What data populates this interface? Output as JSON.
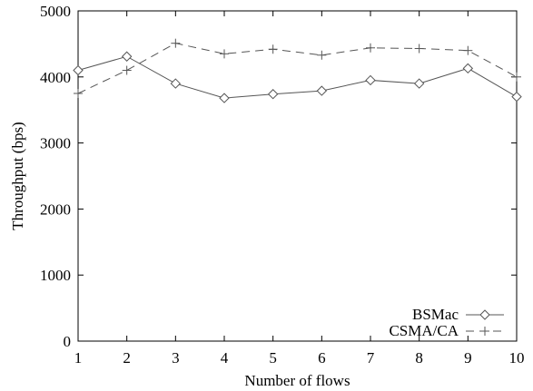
{
  "chart_data": {
    "type": "line",
    "title": "",
    "xlabel": "Number of flows",
    "ylabel": "Throughput (bps)",
    "x": [
      1,
      2,
      3,
      4,
      5,
      6,
      7,
      8,
      9,
      10
    ],
    "xlim": [
      1,
      10
    ],
    "ylim": [
      0,
      5000
    ],
    "xticks": [
      "1",
      "2",
      "3",
      "4",
      "5",
      "6",
      "7",
      "8",
      "9",
      "10"
    ],
    "yticks": [
      "0",
      "1000",
      "2000",
      "3000",
      "4000",
      "5000"
    ],
    "grid": false,
    "legend_position": "bottom-right",
    "series": [
      {
        "name": "BSMac",
        "values": [
          4100,
          4310,
          3900,
          3680,
          3740,
          3790,
          3950,
          3900,
          4130,
          3700
        ],
        "marker": "diamond",
        "line": "solid",
        "color": "#555555"
      },
      {
        "name": "CSMA/CA",
        "values": [
          3750,
          4100,
          4510,
          4350,
          4420,
          4330,
          4440,
          4430,
          4400,
          4000
        ],
        "marker": "plus",
        "line": "dashed",
        "color": "#555555"
      }
    ]
  }
}
